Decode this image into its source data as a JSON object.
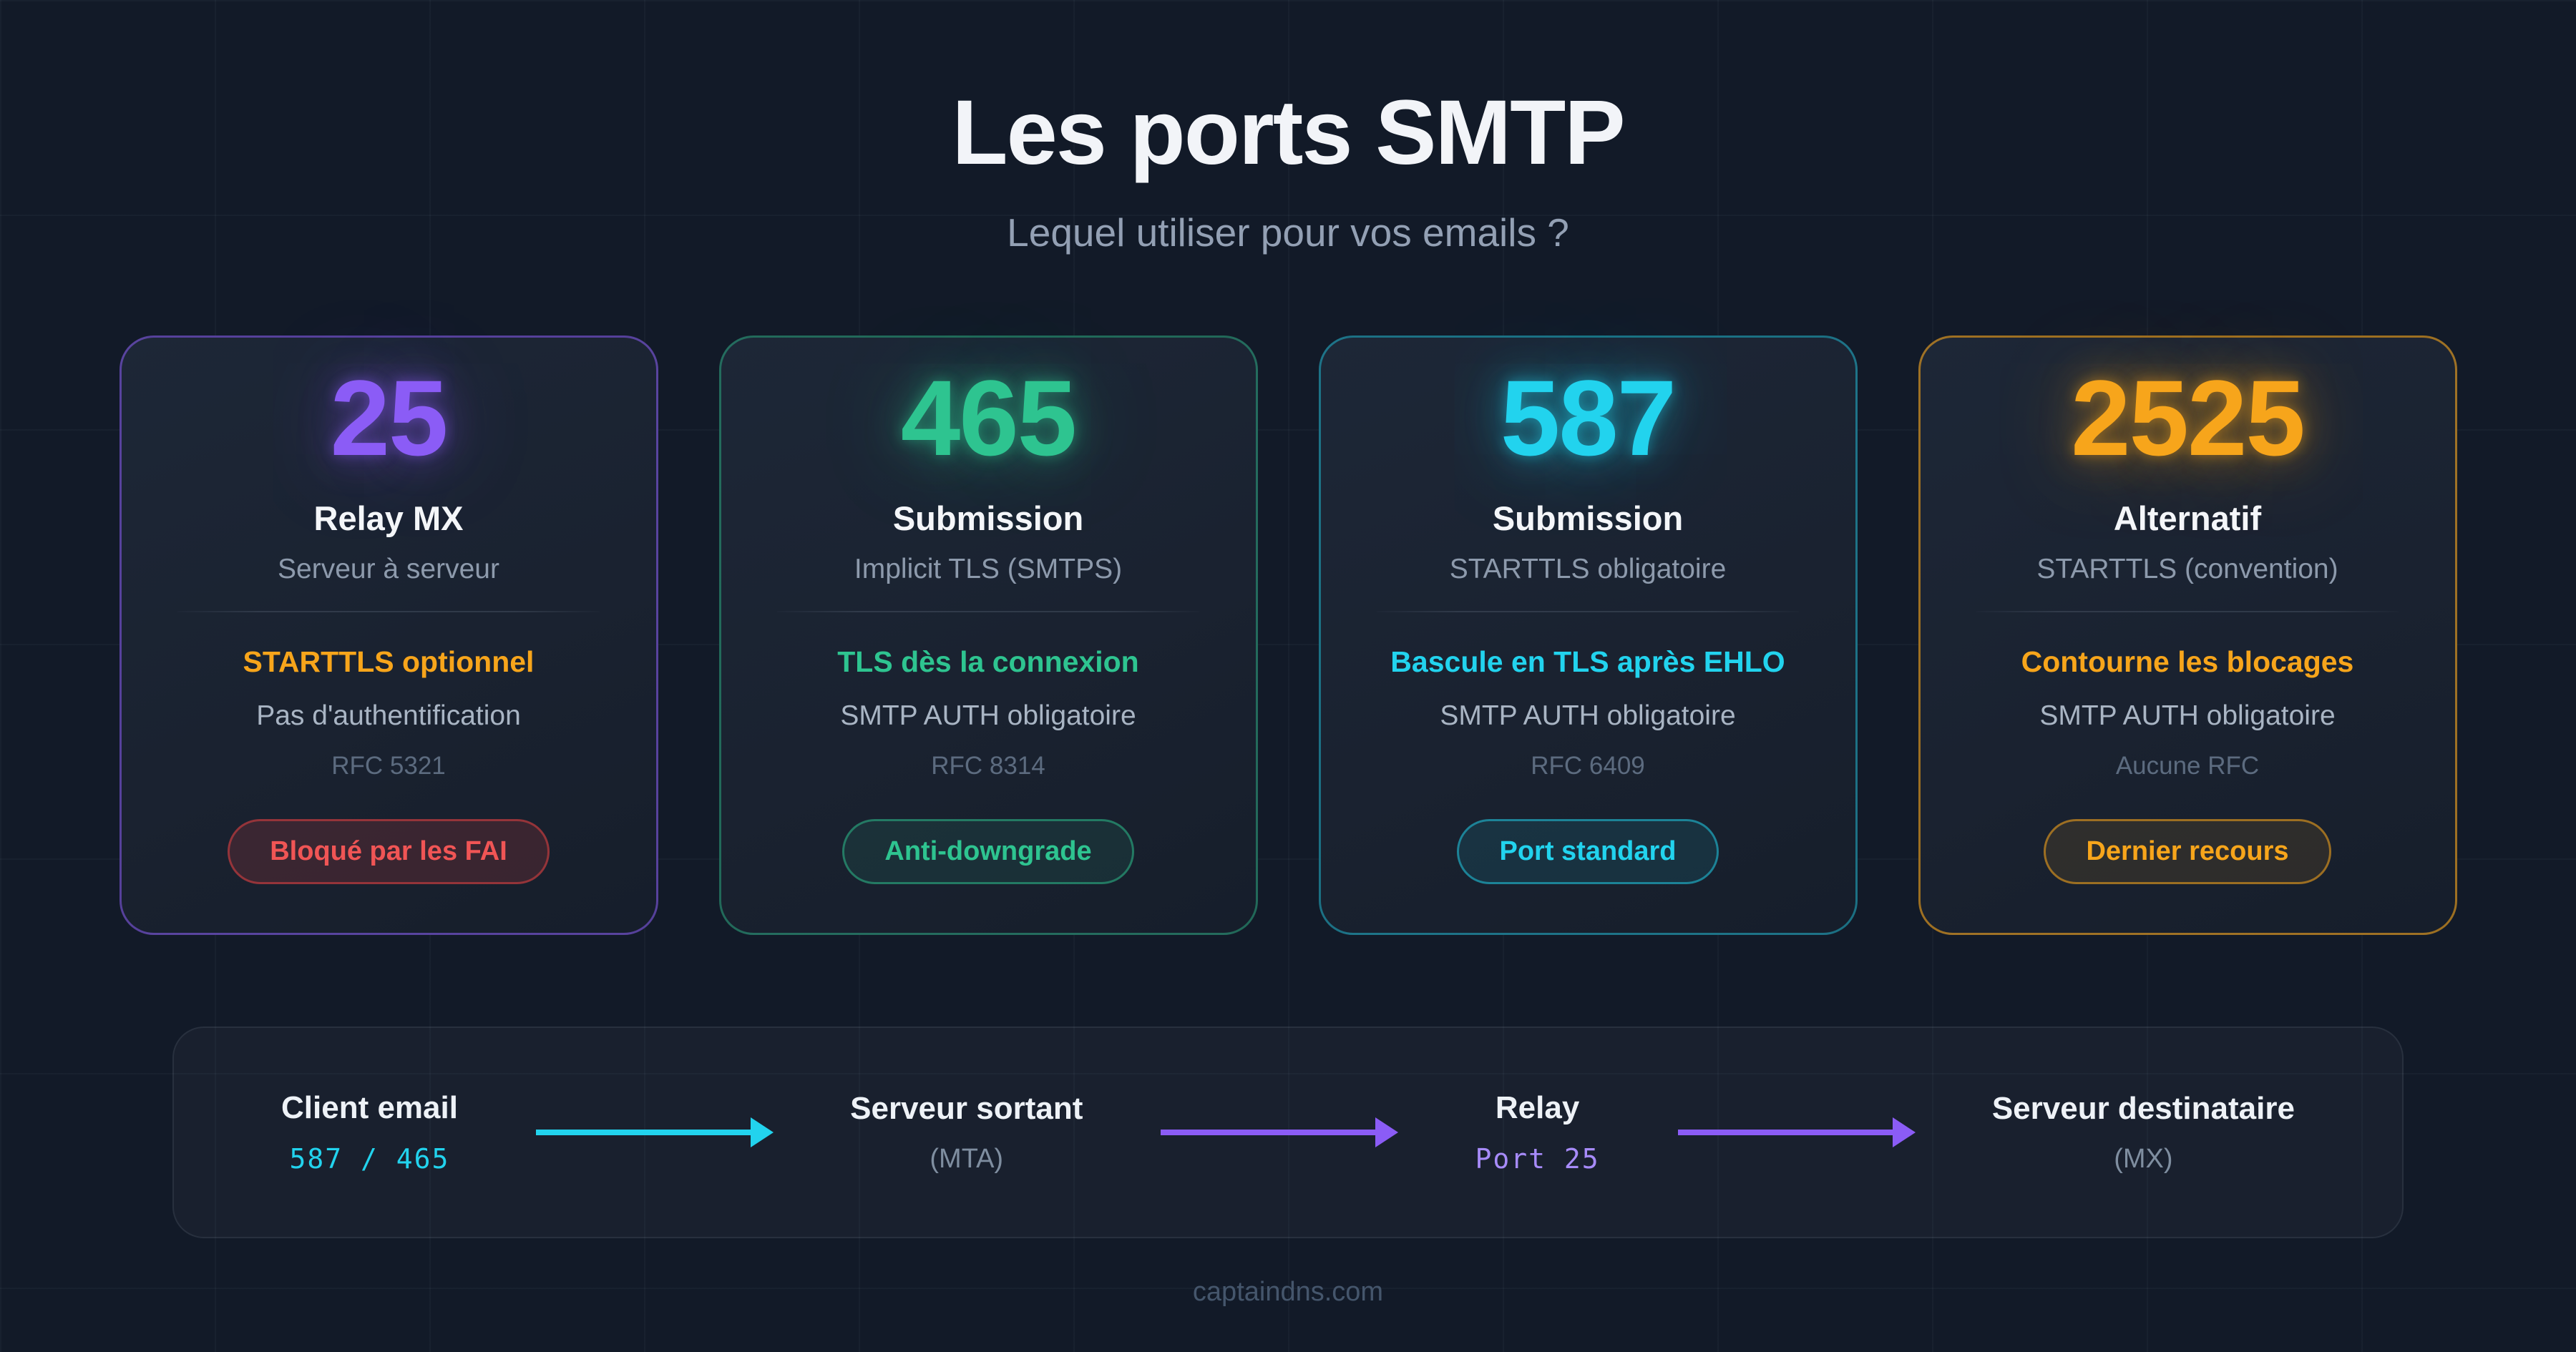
{
  "header": {
    "title": "Les ports SMTP",
    "subtitle": "Lequel utiliser pour vos emails ?"
  },
  "colors": {
    "background": "#121a28",
    "card_background": "#1a2230",
    "purple": "#8b5cf6",
    "green": "#2ec490",
    "cyan": "#22d3ee",
    "orange": "#f7a51b",
    "red": "#f05555"
  },
  "cards": [
    {
      "port": "25",
      "name": "Relay MX",
      "description": "Serveur à serveur",
      "highlight": "STARTTLS optionnel",
      "auth": "Pas d'authentification",
      "rfc": "RFC 5321",
      "accent": "#8b5cf6",
      "glow": "rgba(139,92,246,0.45)",
      "border_color": "rgba(139,92,246,0.55)",
      "highlight_color": "#f7a51b",
      "badge": {
        "label": "Bloqué par les FAI",
        "color": "#f05555",
        "border_color": "rgba(239,68,68,0.5)",
        "bg_color": "rgba(239,68,68,0.16)"
      }
    },
    {
      "port": "465",
      "name": "Submission",
      "description": "Implicit TLS (SMTPS)",
      "highlight": "TLS dès la connexion",
      "auth": "SMTP AUTH obligatoire",
      "rfc": "RFC 8314",
      "accent": "#2ec490",
      "glow": "rgba(46,196,144,0.45)",
      "border_color": "rgba(46,196,144,0.45)",
      "highlight_color": "#2ec490",
      "badge": {
        "label": "Anti-downgrade",
        "color": "#2ec490",
        "border_color": "rgba(46,196,144,0.5)",
        "bg_color": "rgba(46,196,144,0.1)"
      }
    },
    {
      "port": "587",
      "name": "Submission",
      "description": "STARTTLS obligatoire",
      "highlight": "Bascule en TLS après EHLO",
      "auth": "SMTP AUTH obligatoire",
      "rfc": "RFC 6409",
      "accent": "#22d3ee",
      "glow": "rgba(34,211,238,0.45)",
      "border_color": "rgba(34,211,238,0.45)",
      "highlight_color": "#22d3ee",
      "badge": {
        "label": "Port standard",
        "color": "#22d3ee",
        "border_color": "rgba(34,211,238,0.5)",
        "bg_color": "rgba(34,211,238,0.1)"
      }
    },
    {
      "port": "2525",
      "name": "Alternatif",
      "description": "STARTTLS (convention)",
      "highlight": "Contourne les blocages",
      "auth": "SMTP AUTH obligatoire",
      "rfc": "Aucune RFC",
      "accent": "#f7a51b",
      "glow": "rgba(247,165,27,0.45)",
      "border_color": "rgba(247,165,27,0.6)",
      "highlight_color": "#f7a51b",
      "badge": {
        "label": "Dernier recours",
        "color": "#f7a51b",
        "border_color": "rgba(247,165,27,0.55)",
        "bg_color": "rgba(247,165,27,0.1)"
      }
    }
  ],
  "flow": {
    "nodes": [
      {
        "label": "Client email",
        "sub": "587 / 465",
        "sub_color": "#22d3ee"
      },
      {
        "label": "Serveur sortant",
        "sub": "(MTA)",
        "sub_color": "#7f8ea0"
      },
      {
        "label": "Relay",
        "sub": "Port 25",
        "sub_color": "#a78bfa"
      },
      {
        "label": "Serveur destinataire",
        "sub": "(MX)",
        "sub_color": "#7f8ea0"
      }
    ],
    "arrows": [
      {
        "color": "#22d3ee"
      },
      {
        "color": "#8b5cf6"
      },
      {
        "color": "#8b5cf6"
      }
    ]
  },
  "footer": {
    "site": "captaindns.com"
  }
}
